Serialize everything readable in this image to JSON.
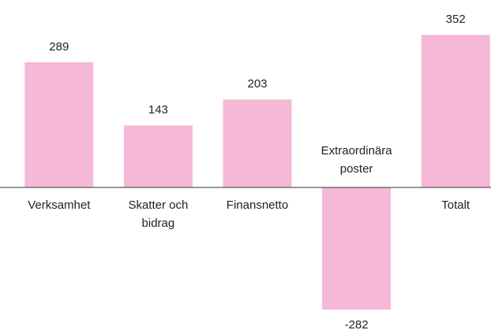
{
  "chart_data": {
    "type": "bar",
    "categories": [
      "Verksamhet",
      "Skatter och bidrag",
      "Finansnetto",
      "Extraordinära poster",
      "Totalt"
    ],
    "values": [
      289,
      143,
      203,
      -282,
      352
    ],
    "color": "#f5b8d6",
    "ylim": [
      -300,
      400
    ]
  }
}
